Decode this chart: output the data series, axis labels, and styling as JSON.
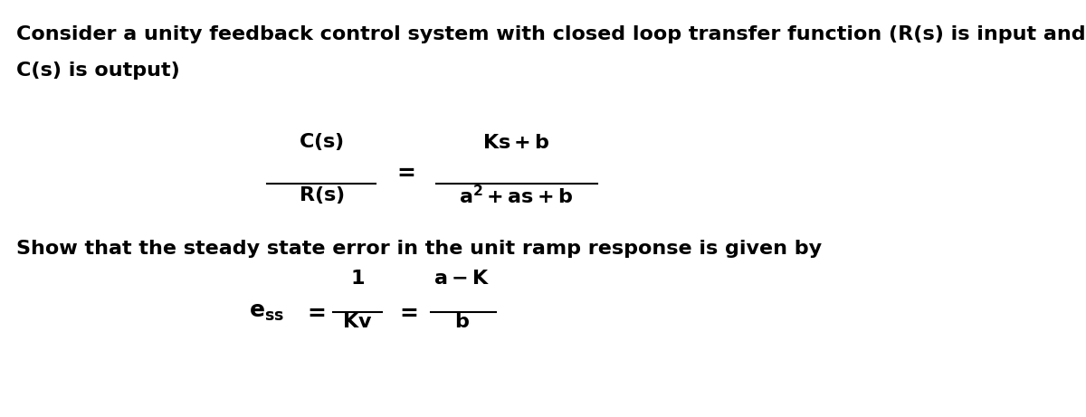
{
  "background_color": "#ffffff",
  "fig_width": 12.0,
  "fig_height": 4.61,
  "dpi": 100,
  "text_color": "#000000",
  "text_fontsize": 16,
  "math_fontsize": 16,
  "intro_line1": "Consider a unity feedback control system with closed loop transfer function (R(s) is input and",
  "intro_line2": "C(s) is output)",
  "show_line": "Show that the steady state error in the unit ramp response is given by"
}
